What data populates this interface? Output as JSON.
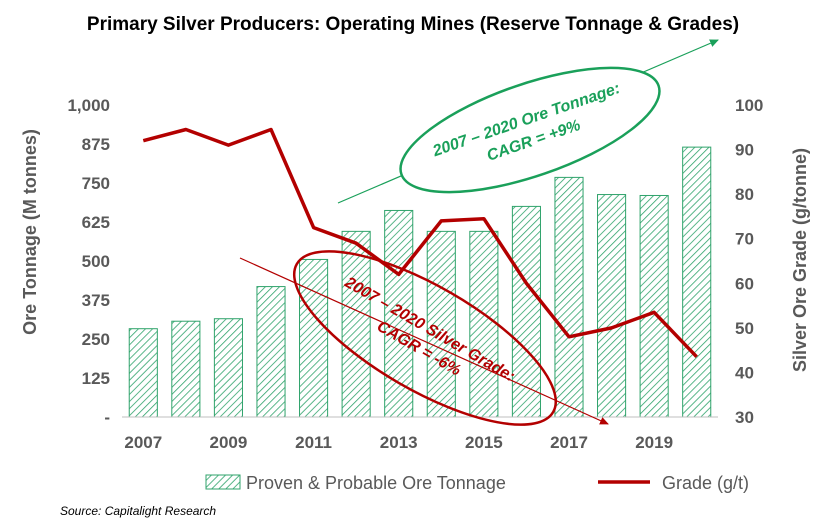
{
  "colors": {
    "bar_hatch": "#2fa36b",
    "bar_fill": "#ffffff",
    "grade_line": "#b30000",
    "axis_text": "#595959",
    "gridline": "#d9d9d9",
    "green_annotation": "#1aa05a",
    "red_annotation": "#b30000"
  },
  "chart_data": {
    "type": "bar",
    "title": "Primary Silver Producers: Operating Mines (Reserve Tonnage & Grades)",
    "x": [
      2007,
      2008,
      2009,
      2010,
      2011,
      2012,
      2013,
      2014,
      2015,
      2016,
      2017,
      2018,
      2019,
      2020
    ],
    "x_tick_labels": [
      "2007",
      "2009",
      "2011",
      "2013",
      "2015",
      "2017",
      "2019"
    ],
    "ylabel_left": "Ore Tonnage (M tonnes)",
    "ylabel_right": "Silver Ore Grade (g/tonne)",
    "ylim_left": [
      0,
      1000
    ],
    "ylim_right": [
      30,
      100
    ],
    "y_left_ticks": [
      "-",
      "125",
      "250",
      "375",
      "500",
      "625",
      "750",
      "875",
      "1,000"
    ],
    "y_right_ticks": [
      "30",
      "40",
      "50",
      "60",
      "70",
      "80",
      "90",
      "100"
    ],
    "grid": false,
    "legend_position": "bottom",
    "series": [
      {
        "name": "Proven & Probable Ore Tonnage",
        "type": "bar",
        "axis": "left",
        "values": [
          283,
          307,
          315,
          418,
          505,
          595,
          662,
          595,
          595,
          675,
          768,
          713,
          710,
          865
        ]
      },
      {
        "name": "Grade (g/t)",
        "type": "line",
        "axis": "right",
        "values": [
          92,
          94.5,
          91,
          94.5,
          72.5,
          69,
          62,
          74,
          74.5,
          60,
          48,
          50,
          53.5,
          43.5
        ]
      }
    ],
    "annotations": [
      {
        "lines": [
          "2007 – 2020 Ore Tonnage:",
          "CAGR = +9%"
        ]
      },
      {
        "lines": [
          "2007 – 2020 Silver Grade:",
          "CAGR = -6%"
        ]
      }
    ],
    "source": "Source: Capitalight Research"
  }
}
